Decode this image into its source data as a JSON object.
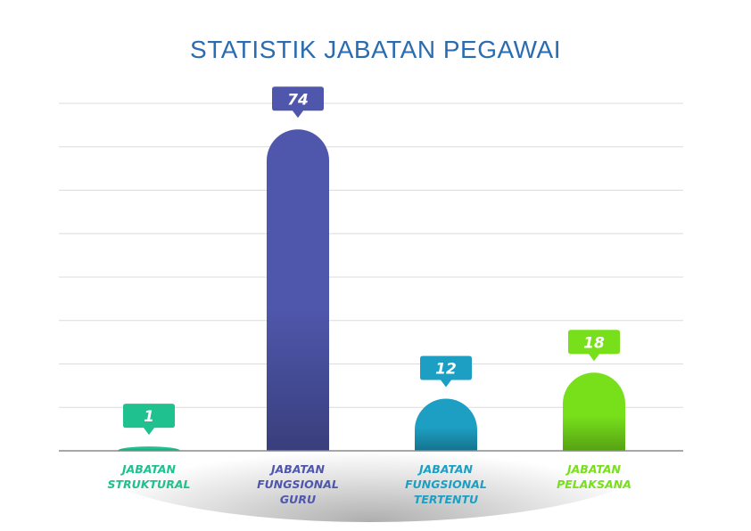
{
  "chart_data": {
    "type": "bar",
    "title": "STATISTIK JABATAN PEGAWAI",
    "xlabel": "",
    "ylabel": "",
    "categories": [
      [
        "JABATAN",
        "STRUKTURAL"
      ],
      [
        "JABATAN",
        "FUNGSIONAL",
        "GURU"
      ],
      [
        "JABATAN",
        "FUNGSIONAL",
        "TERTENTU"
      ],
      [
        "JABATAN",
        "PELAKSANA"
      ]
    ],
    "values": [
      1,
      74,
      12,
      18
    ],
    "ylim": [
      0,
      80
    ],
    "grid": true,
    "legend": "none",
    "colors": [
      "#1fc18e",
      "#4f57ac",
      "#1d9fc3",
      "#77e01b"
    ],
    "label_colors": [
      "#1fc18e",
      "#4f57ac",
      "#1d9fc3",
      "#77e01b"
    ]
  }
}
